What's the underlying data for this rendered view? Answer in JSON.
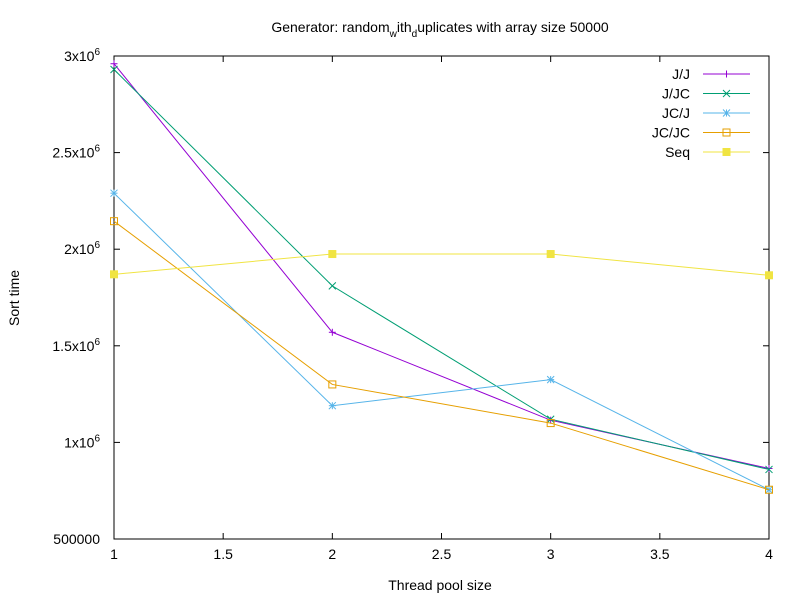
{
  "chart_data": {
    "type": "line",
    "title_parts": [
      "Generator: random",
      "w",
      "ith",
      "d",
      "uplicates with array size 50000"
    ],
    "xlabel": "Thread pool size",
    "ylabel": "Sort time",
    "x": [
      1,
      2,
      3,
      4
    ],
    "xlim": [
      1,
      4
    ],
    "ylim": [
      500000,
      3000000
    ],
    "xticks": [
      {
        "v": 1,
        "label": "1"
      },
      {
        "v": 1.5,
        "label": "1.5"
      },
      {
        "v": 2,
        "label": "2"
      },
      {
        "v": 2.5,
        "label": "2.5"
      },
      {
        "v": 3,
        "label": "3"
      },
      {
        "v": 3.5,
        "label": "3.5"
      },
      {
        "v": 4,
        "label": "4"
      }
    ],
    "yticks": [
      {
        "v": 500000,
        "label": "500000",
        "sup": ""
      },
      {
        "v": 1000000,
        "label": "1x10",
        "sup": "6"
      },
      {
        "v": 1500000,
        "label": "1.5x10",
        "sup": "6"
      },
      {
        "v": 2000000,
        "label": "2x10",
        "sup": "6"
      },
      {
        "v": 2500000,
        "label": "2.5x10",
        "sup": "6"
      },
      {
        "v": 3000000,
        "label": "3x10",
        "sup": "6"
      }
    ],
    "grid": false,
    "legend_position": "top-right",
    "series": [
      {
        "name": "J/J",
        "color": "#9400d3",
        "marker": "plus",
        "values": [
          2960000,
          1570000,
          1115000,
          865000
        ]
      },
      {
        "name": "J/JC",
        "color": "#009e73",
        "marker": "cross",
        "values": [
          2930000,
          1810000,
          1120000,
          860000
        ]
      },
      {
        "name": "JC/J",
        "color": "#56b4e9",
        "marker": "asterisk",
        "values": [
          2290000,
          1190000,
          1325000,
          755000
        ]
      },
      {
        "name": "JC/JC",
        "color": "#e69f00",
        "marker": "square-open",
        "values": [
          2145000,
          1300000,
          1100000,
          755000
        ]
      },
      {
        "name": "Seq",
        "color": "#f0e442",
        "marker": "square-filled",
        "values": [
          1870000,
          1975000,
          1975000,
          1865000
        ]
      }
    ]
  }
}
